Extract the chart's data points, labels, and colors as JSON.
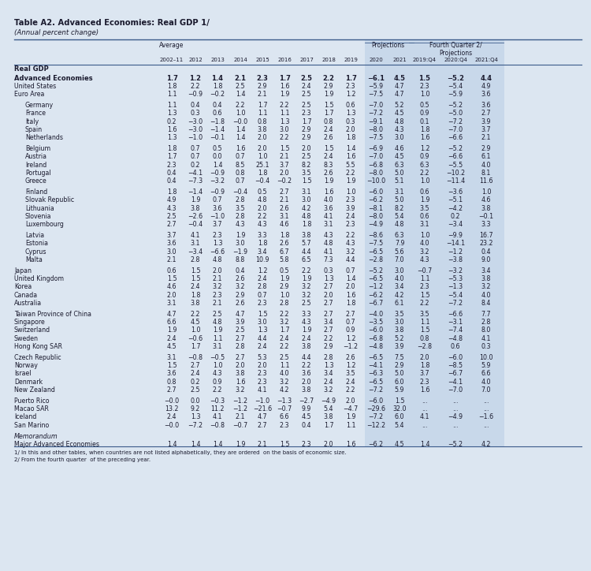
{
  "title": "Table A2. Advanced Economies: Real GDP 1/",
  "subtitle": "(Annual percent change)",
  "bg_color": "#dce6f1",
  "shade_color": "#c8d8ea",
  "text_color": "#1a1a2e",
  "col_years": [
    "2002–11",
    "2012",
    "2013",
    "2014",
    "2015",
    "2016",
    "2017",
    "2018",
    "2019",
    "2020",
    "2021",
    "2019:Q4",
    "2020:Q4",
    "2021:Q4"
  ],
  "rows": [
    {
      "label": "Real GDP",
      "type": "section",
      "values": []
    },
    {
      "label": "Advanced Economies",
      "type": "bold",
      "values": [
        "1.7",
        "1.2",
        "1.4",
        "2.1",
        "2.3",
        "1.7",
        "2.5",
        "2.2",
        "1.7",
        "−6.1",
        "4.5",
        "1.5",
        "−5.2",
        "4.4"
      ]
    },
    {
      "label": "United States",
      "type": "normal",
      "values": [
        "1.8",
        "2.2",
        "1.8",
        "2.5",
        "2.9",
        "1.6",
        "2.4",
        "2.9",
        "2.3",
        "−5.9",
        "4.7",
        "2.3",
        "−5.4",
        "4.9"
      ]
    },
    {
      "label": "Euro Area",
      "type": "normal",
      "values": [
        "1.1",
        "−0.9",
        "−0.2",
        "1.4",
        "2.1",
        "1.9",
        "2.5",
        "1.9",
        "1.2",
        "−7.5",
        "4.7",
        "1.0",
        "−5.9",
        "3.6"
      ]
    },
    {
      "label": "",
      "type": "gap",
      "values": []
    },
    {
      "label": "Germany",
      "type": "indent",
      "values": [
        "1.1",
        "0.4",
        "0.4",
        "2.2",
        "1.7",
        "2.2",
        "2.5",
        "1.5",
        "0.6",
        "−7.0",
        "5.2",
        "0.5",
        "−5.2",
        "3.6"
      ]
    },
    {
      "label": "France",
      "type": "indent",
      "values": [
        "1.3",
        "0.3",
        "0.6",
        "1.0",
        "1.1",
        "1.1",
        "2.3",
        "1.7",
        "1.3",
        "−7.2",
        "4.5",
        "0.9",
        "−5.0",
        "2.7"
      ]
    },
    {
      "label": "Italy",
      "type": "indent",
      "values": [
        "0.2",
        "−3.0",
        "−1.8",
        "−0.0",
        "0.8",
        "1.3",
        "1.7",
        "0.8",
        "0.3",
        "−9.1",
        "4.8",
        "0.1",
        "−7.2",
        "3.9"
      ]
    },
    {
      "label": "Spain",
      "type": "indent",
      "values": [
        "1.6",
        "−3.0",
        "−1.4",
        "1.4",
        "3.8",
        "3.0",
        "2.9",
        "2.4",
        "2.0",
        "−8.0",
        "4.3",
        "1.8",
        "−7.0",
        "3.7"
      ]
    },
    {
      "label": "Netherlands",
      "type": "indent",
      "values": [
        "1.3",
        "−1.0",
        "−0.1",
        "1.4",
        "2.0",
        "2.2",
        "2.9",
        "2.6",
        "1.8",
        "−7.5",
        "3.0",
        "1.6",
        "−6.6",
        "2.1"
      ]
    },
    {
      "label": "",
      "type": "gap",
      "values": []
    },
    {
      "label": "Belgium",
      "type": "indent",
      "values": [
        "1.8",
        "0.7",
        "0.5",
        "1.6",
        "2.0",
        "1.5",
        "2.0",
        "1.5",
        "1.4",
        "−6.9",
        "4.6",
        "1.2",
        "−5.2",
        "2.9"
      ]
    },
    {
      "label": "Austria",
      "type": "indent",
      "values": [
        "1.7",
        "0.7",
        "0.0",
        "0.7",
        "1.0",
        "2.1",
        "2.5",
        "2.4",
        "1.6",
        "−7.0",
        "4.5",
        "0.9",
        "−6.6",
        "6.1"
      ]
    },
    {
      "label": "Ireland",
      "type": "indent",
      "values": [
        "2.3",
        "0.2",
        "1.4",
        "8.5",
        "25.1",
        "3.7",
        "8.2",
        "8.3",
        "5.5",
        "−6.8",
        "6.3",
        "6.3",
        "−5.5",
        "4.0"
      ]
    },
    {
      "label": "Portugal",
      "type": "indent",
      "values": [
        "0.4",
        "−4.1",
        "−0.9",
        "0.8",
        "1.8",
        "2.0",
        "3.5",
        "2.6",
        "2.2",
        "−8.0",
        "5.0",
        "2.2",
        "−10.2",
        "8.1"
      ]
    },
    {
      "label": "Greece",
      "type": "indent",
      "values": [
        "0.4",
        "−7.3",
        "−3.2",
        "0.7",
        "−0.4",
        "−0.2",
        "1.5",
        "1.9",
        "1.9",
        "−10.0",
        "5.1",
        "1.0",
        "−11.4",
        "11.6"
      ]
    },
    {
      "label": "",
      "type": "gap",
      "values": []
    },
    {
      "label": "Finland",
      "type": "indent",
      "values": [
        "1.8",
        "−1.4",
        "−0.9",
        "−0.4",
        "0.5",
        "2.7",
        "3.1",
        "1.6",
        "1.0",
        "−6.0",
        "3.1",
        "0.6",
        "−3.6",
        "1.0"
      ]
    },
    {
      "label": "Slovak Republic",
      "type": "indent",
      "values": [
        "4.9",
        "1.9",
        "0.7",
        "2.8",
        "4.8",
        "2.1",
        "3.0",
        "4.0",
        "2.3",
        "−6.2",
        "5.0",
        "1.9",
        "−5.1",
        "4.6"
      ]
    },
    {
      "label": "Lithuania",
      "type": "indent",
      "values": [
        "4.3",
        "3.8",
        "3.6",
        "3.5",
        "2.0",
        "2.6",
        "4.2",
        "3.6",
        "3.9",
        "−8.1",
        "8.2",
        "3.5",
        "−4.2",
        "3.8"
      ]
    },
    {
      "label": "Slovenia",
      "type": "indent",
      "values": [
        "2.5",
        "−2.6",
        "−1.0",
        "2.8",
        "2.2",
        "3.1",
        "4.8",
        "4.1",
        "2.4",
        "−8.0",
        "5.4",
        "0.6",
        "0.2",
        "−0.1"
      ]
    },
    {
      "label": "Luxembourg",
      "type": "indent",
      "values": [
        "2.7",
        "−0.4",
        "3.7",
        "4.3",
        "4.3",
        "4.6",
        "1.8",
        "3.1",
        "2.3",
        "−4.9",
        "4.8",
        "3.1",
        "−3.4",
        "3.3"
      ]
    },
    {
      "label": "",
      "type": "gap",
      "values": []
    },
    {
      "label": "Latvia",
      "type": "indent",
      "values": [
        "3.7",
        "4.1",
        "2.3",
        "1.9",
        "3.3",
        "1.8",
        "3.8",
        "4.3",
        "2.2",
        "−8.6",
        "6.3",
        "1.0",
        "−9.9",
        "16.7"
      ]
    },
    {
      "label": "Estonia",
      "type": "indent",
      "values": [
        "3.6",
        "3.1",
        "1.3",
        "3.0",
        "1.8",
        "2.6",
        "5.7",
        "4.8",
        "4.3",
        "−7.5",
        "7.9",
        "4.0",
        "−14.1",
        "23.2"
      ]
    },
    {
      "label": "Cyprus",
      "type": "indent",
      "values": [
        "3.0",
        "−3.4",
        "−6.6",
        "−1.9",
        "3.4",
        "6.7",
        "4.4",
        "4.1",
        "3.2",
        "−6.5",
        "5.6",
        "3.2",
        "−1.2",
        "0.4"
      ]
    },
    {
      "label": "Malta",
      "type": "indent",
      "values": [
        "2.1",
        "2.8",
        "4.8",
        "8.8",
        "10.9",
        "5.8",
        "6.5",
        "7.3",
        "4.4",
        "−2.8",
        "7.0",
        "4.3",
        "−3.8",
        "9.0"
      ]
    },
    {
      "label": "",
      "type": "gap",
      "values": []
    },
    {
      "label": "Japan",
      "type": "normal",
      "values": [
        "0.6",
        "1.5",
        "2.0",
        "0.4",
        "1.2",
        "0.5",
        "2.2",
        "0.3",
        "0.7",
        "−5.2",
        "3.0",
        "−0.7",
        "−3.2",
        "3.4"
      ]
    },
    {
      "label": "United Kingdom",
      "type": "normal",
      "values": [
        "1.5",
        "1.5",
        "2.1",
        "2.6",
        "2.4",
        "1.9",
        "1.9",
        "1.3",
        "1.4",
        "−6.5",
        "4.0",
        "1.1",
        "−5.3",
        "3.8"
      ]
    },
    {
      "label": "Korea",
      "type": "normal",
      "values": [
        "4.6",
        "2.4",
        "3.2",
        "3.2",
        "2.8",
        "2.9",
        "3.2",
        "2.7",
        "2.0",
        "−1.2",
        "3.4",
        "2.3",
        "−1.3",
        "3.2"
      ]
    },
    {
      "label": "Canada",
      "type": "normal",
      "values": [
        "2.0",
        "1.8",
        "2.3",
        "2.9",
        "0.7",
        "1.0",
        "3.2",
        "2.0",
        "1.6",
        "−6.2",
        "4.2",
        "1.5",
        "−5.4",
        "4.0"
      ]
    },
    {
      "label": "Australia",
      "type": "normal",
      "values": [
        "3.1",
        "3.8",
        "2.1",
        "2.6",
        "2.3",
        "2.8",
        "2.5",
        "2.7",
        "1.8",
        "−6.7",
        "6.1",
        "2.2",
        "−7.2",
        "8.4"
      ]
    },
    {
      "label": "",
      "type": "gap",
      "values": []
    },
    {
      "label": "Taiwan Province of China",
      "type": "normal",
      "values": [
        "4.7",
        "2.2",
        "2.5",
        "4.7",
        "1.5",
        "2.2",
        "3.3",
        "2.7",
        "2.7",
        "−4.0",
        "3.5",
        "3.5",
        "−6.6",
        "7.7"
      ]
    },
    {
      "label": "Singapore",
      "type": "normal",
      "values": [
        "6.6",
        "4.5",
        "4.8",
        "3.9",
        "3.0",
        "3.2",
        "4.3",
        "3.4",
        "0.7",
        "−3.5",
        "3.0",
        "1.1",
        "−3.1",
        "2.8"
      ]
    },
    {
      "label": "Switzerland",
      "type": "normal",
      "values": [
        "1.9",
        "1.0",
        "1.9",
        "2.5",
        "1.3",
        "1.7",
        "1.9",
        "2.7",
        "0.9",
        "−6.0",
        "3.8",
        "1.5",
        "−7.4",
        "8.0"
      ]
    },
    {
      "label": "Sweden",
      "type": "normal",
      "values": [
        "2.4",
        "−0.6",
        "1.1",
        "2.7",
        "4.4",
        "2.4",
        "2.4",
        "2.2",
        "1.2",
        "−6.8",
        "5.2",
        "0.8",
        "−4.8",
        "4.1"
      ]
    },
    {
      "label": "Hong Kong SAR",
      "type": "normal",
      "values": [
        "4.5",
        "1.7",
        "3.1",
        "2.8",
        "2.4",
        "2.2",
        "3.8",
        "2.9",
        "−1.2",
        "−4.8",
        "3.9",
        "−2.8",
        "0.6",
        "0.3"
      ]
    },
    {
      "label": "",
      "type": "gap",
      "values": []
    },
    {
      "label": "Czech Republic",
      "type": "normal",
      "values": [
        "3.1",
        "−0.8",
        "−0.5",
        "2.7",
        "5.3",
        "2.5",
        "4.4",
        "2.8",
        "2.6",
        "−6.5",
        "7.5",
        "2.0",
        "−6.0",
        "10.0"
      ]
    },
    {
      "label": "Norway",
      "type": "normal",
      "values": [
        "1.5",
        "2.7",
        "1.0",
        "2.0",
        "2.0",
        "1.1",
        "2.2",
        "1.3",
        "1.2",
        "−4.1",
        "2.9",
        "1.8",
        "−8.5",
        "5.9"
      ]
    },
    {
      "label": "Israel",
      "type": "normal",
      "values": [
        "3.6",
        "2.4",
        "4.3",
        "3.8",
        "2.3",
        "4.0",
        "3.6",
        "3.4",
        "3.5",
        "−6.3",
        "5.0",
        "3.7",
        "−6.7",
        "6.6"
      ]
    },
    {
      "label": "Denmark",
      "type": "normal",
      "values": [
        "0.8",
        "0.2",
        "0.9",
        "1.6",
        "2.3",
        "3.2",
        "2.0",
        "2.4",
        "2.4",
        "−6.5",
        "6.0",
        "2.3",
        "−4.1",
        "4.0"
      ]
    },
    {
      "label": "New Zealand",
      "type": "normal",
      "values": [
        "2.7",
        "2.5",
        "2.2",
        "3.2",
        "4.1",
        "4.2",
        "3.8",
        "3.2",
        "2.2",
        "−7.2",
        "5.9",
        "1.6",
        "−7.0",
        "7.0"
      ]
    },
    {
      "label": "",
      "type": "gap",
      "values": []
    },
    {
      "label": "Puerto Rico",
      "type": "normal",
      "values": [
        "−0.0",
        "0.0",
        "−0.3",
        "−1.2",
        "−1.0",
        "−1.3",
        "−2.7",
        "−4.9",
        "2.0",
        "−6.0",
        "1.5",
        "...",
        "...",
        "..."
      ]
    },
    {
      "label": "Macao SAR",
      "type": "normal",
      "values": [
        "13.2",
        "9.2",
        "11.2",
        "−1.2",
        "−21.6",
        "−0.7",
        "9.9",
        "5.4",
        "−4.7",
        "−29.6",
        "32.0",
        "...",
        "...",
        "..."
      ]
    },
    {
      "label": "Iceland",
      "type": "normal",
      "values": [
        "2.4",
        "1.3",
        "4.1",
        "2.1",
        "4.7",
        "6.6",
        "4.5",
        "3.8",
        "1.9",
        "−7.2",
        "6.0",
        "4.1",
        "−4.9",
        "−1.6"
      ]
    },
    {
      "label": "San Marino",
      "type": "normal",
      "values": [
        "−0.0",
        "−7.2",
        "−0.8",
        "−0.7",
        "2.7",
        "2.3",
        "0.4",
        "1.7",
        "1.1",
        "−12.2",
        "5.4",
        "...",
        "...",
        "..."
      ]
    },
    {
      "label": "",
      "type": "gap",
      "values": []
    },
    {
      "label": "Memorandum",
      "type": "memo_section",
      "values": []
    },
    {
      "label": "Major Advanced Economies",
      "type": "normal",
      "values": [
        "1.4",
        "1.4",
        "1.4",
        "1.9",
        "2.1",
        "1.5",
        "2.3",
        "2.0",
        "1.6",
        "−6.2",
        "4.5",
        "1.4",
        "−5.2",
        "4.2"
      ]
    }
  ],
  "footnotes": [
    "1/ In this and other tables, when countries are not listed alphabetically, they are ordered  on the basis of economic size.",
    "2/ From the fourth quarter  of the preceding year."
  ]
}
